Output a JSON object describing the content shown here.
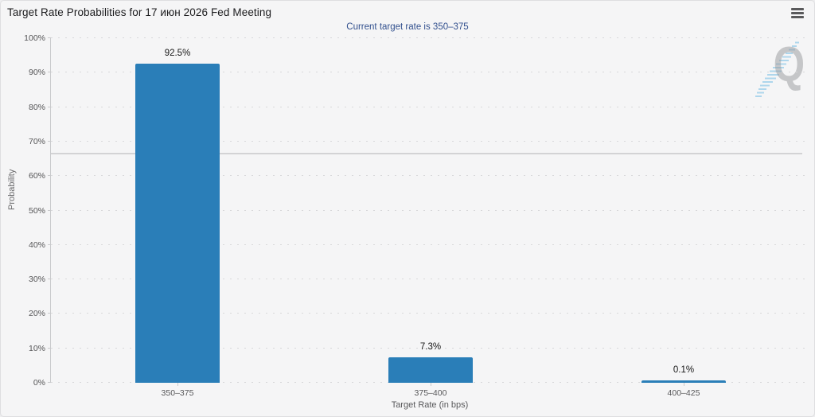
{
  "header": {
    "title": "Target Rate Probabilities for 17 июн 2026 Fed Meeting",
    "menu_icon": "hamburger-menu-icon"
  },
  "chart_data": {
    "type": "bar",
    "title": "Target Rate Probabilities for 17 июн 2026 Fed Meeting",
    "subtitle": "Current target rate is 350–375",
    "categories": [
      "350–375",
      "375–400",
      "400–425"
    ],
    "values": [
      92.5,
      7.3,
      0.1
    ],
    "value_labels": [
      "92.5%",
      "7.3%",
      "0.1%"
    ],
    "xlabel": "Target Rate (in bps)",
    "ylabel": "Probability",
    "ylim": [
      0,
      100
    ],
    "yticks": [
      0,
      10,
      20,
      30,
      40,
      50,
      60,
      70,
      80,
      90,
      100
    ],
    "ytick_labels": [
      "0%",
      "10%",
      "20%",
      "30%",
      "40%",
      "50%",
      "60%",
      "70%",
      "80%",
      "90%",
      "100%"
    ],
    "grid": "dotted horizontal gridlines",
    "legend": "none",
    "reference_line_percent": 66.3,
    "bar_color": "#2a7eb8",
    "watermark_letter": "Q"
  }
}
